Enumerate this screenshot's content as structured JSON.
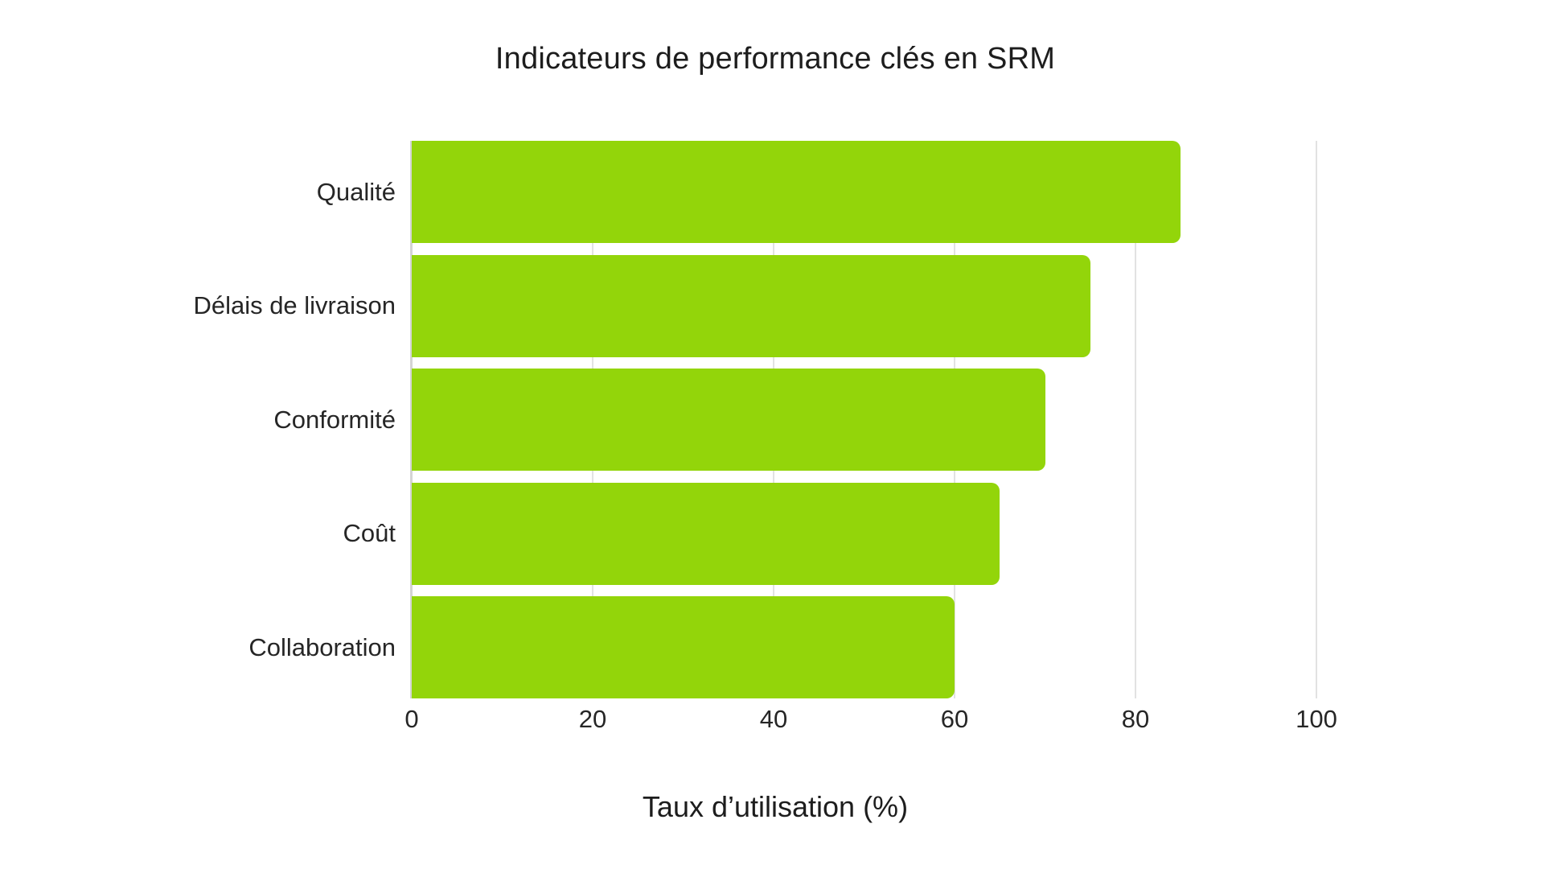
{
  "chart_data": {
    "type": "bar",
    "orientation": "horizontal",
    "title": "Indicateurs de performance clés en SRM",
    "categories": [
      "Qualité",
      "Délais de livraison",
      "Conformité",
      "Coût",
      "Collaboration"
    ],
    "values": [
      85,
      75,
      70,
      65,
      60
    ],
    "series_name": "Taux d’utilisation",
    "xlabel": "Taux d’utilisation (%)",
    "ylabel": "",
    "xlim": [
      0,
      105
    ],
    "xticks": [
      0,
      20,
      40,
      60,
      80,
      100
    ],
    "grid": "vertical-only",
    "legend": false,
    "bar_color": "#93d50a",
    "gridline_color": "#e2e2e2",
    "axis_line_color": "#d4d4d4",
    "text_color": "#1d1d1d",
    "background_color": "#ffffff"
  }
}
